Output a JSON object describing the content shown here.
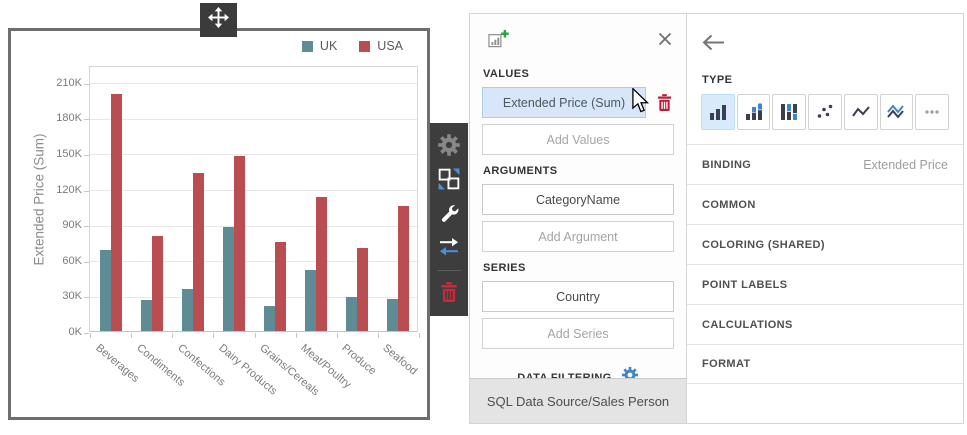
{
  "chart_data": {
    "type": "bar",
    "title": "",
    "categories": [
      "Beverages",
      "Condiments",
      "Confections",
      "Dairy Products",
      "Grains/Cereals",
      "Meat/Poultry",
      "Produce",
      "Seafood"
    ],
    "series": [
      {
        "name": "UK",
        "color": "#5f8b95",
        "values": [
          68,
          26,
          35,
          88,
          21,
          51,
          29,
          27
        ]
      },
      {
        "name": "USA",
        "color": "#ba4d51",
        "values": [
          200,
          80,
          133,
          147,
          75,
          113,
          70,
          105
        ]
      }
    ],
    "value_unit": "K",
    "xlabel": "",
    "ylabel": "Extended Price (Sum)",
    "ylim": [
      0,
      224
    ],
    "yticks": [
      0,
      30,
      60,
      90,
      120,
      150,
      180,
      210
    ],
    "ytick_labels": [
      "0K",
      "30K",
      "60K",
      "90K",
      "120K",
      "150K",
      "180K",
      "210K"
    ],
    "grid": true,
    "legend_position": "top-right"
  },
  "toolbar": {
    "icons": [
      "settings-gear",
      "convert-item",
      "wrench",
      "swap-arrows",
      "delete-trash"
    ]
  },
  "fields_pane": {
    "values_section": {
      "label": "VALUES",
      "chip": "Extended Price (Sum)",
      "add_button": "Add Values"
    },
    "arguments_section": {
      "label": "ARGUMENTS",
      "chip": "CategoryName",
      "add_button": "Add Argument"
    },
    "series_section": {
      "label": "SERIES",
      "chip": "Country",
      "add_button": "Add Series"
    },
    "data_filtering": {
      "label": "DATA FILTERING"
    },
    "footer": "SQL Data Source/Sales Person"
  },
  "options_pane": {
    "type_label": "TYPE",
    "type_options": [
      {
        "name": "bar",
        "selected": true
      },
      {
        "name": "stacked-bar",
        "selected": false
      },
      {
        "name": "full-stacked-bar",
        "selected": false
      },
      {
        "name": "point",
        "selected": false
      },
      {
        "name": "line",
        "selected": false
      },
      {
        "name": "stacked-line",
        "selected": false
      },
      {
        "name": "more",
        "selected": false
      }
    ],
    "rows": [
      {
        "label": "BINDING",
        "value": "Extended Price"
      },
      {
        "label": "COMMON",
        "value": ""
      },
      {
        "label": "COLORING (SHARED)",
        "value": ""
      },
      {
        "label": "POINT LABELS",
        "value": ""
      },
      {
        "label": "CALCULATIONS",
        "value": ""
      },
      {
        "label": "FORMAT",
        "value": ""
      }
    ]
  },
  "colors": {
    "accent_blue": "#3f86c9",
    "selection_bg": "#d7e7f9",
    "danger_red": "#c5293a",
    "toolbar_bg": "#3d3d3d",
    "icon_dark": "#3a4050",
    "uk_teal": "#5f8b95",
    "usa_red": "#ba4d51"
  }
}
